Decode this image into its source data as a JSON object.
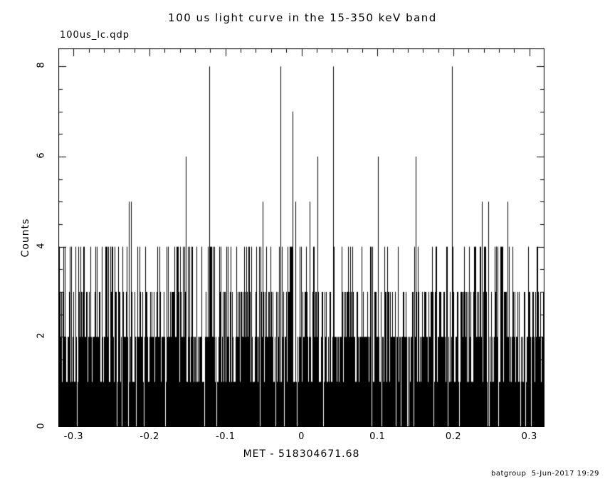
{
  "header": {
    "file_label": "100us_lc.qdp"
  },
  "footer": {
    "credit": "batgroup  5-Jun-2017 19:29"
  },
  "chart_data": {
    "type": "bar",
    "title": "100 us light curve in the 15-350 keV band",
    "xlabel": "MET - 518304671.68",
    "ylabel": "Counts",
    "xlim": [
      -0.32,
      0.32
    ],
    "ylim": [
      0,
      8.4
    ],
    "x_tick_values": [
      -0.3,
      -0.2,
      -0.1,
      0,
      0.1,
      0.2,
      0.3
    ],
    "x_tick_labels": [
      "-0.3",
      "-0.2",
      "-0.1",
      "0",
      "0.1",
      "0.2",
      "0.3"
    ],
    "x_minor_interval": 0.02,
    "y_tick_values": [
      0,
      2,
      4,
      6,
      8
    ],
    "y_tick_labels": [
      "0",
      "2",
      "4",
      "6",
      "8"
    ],
    "y_minor_interval": 0.5,
    "bin_width_s": 0.0001,
    "grid": false,
    "legend": "none",
    "style": "vertical-line histogram, black on white",
    "background_counts": {
      "distribution": "poisson",
      "mean": 1.7,
      "cap": 4,
      "render_bins": 1300,
      "seed": 20170605
    },
    "spikes": [
      {
        "x": -0.227,
        "y": 5
      },
      {
        "x": -0.224,
        "y": 5
      },
      {
        "x": -0.152,
        "y": 6
      },
      {
        "x": -0.121,
        "y": 8
      },
      {
        "x": -0.051,
        "y": 5
      },
      {
        "x": -0.028,
        "y": 8
      },
      {
        "x": -0.012,
        "y": 7
      },
      {
        "x": -0.008,
        "y": 5
      },
      {
        "x": 0.011,
        "y": 5
      },
      {
        "x": 0.021,
        "y": 6
      },
      {
        "x": 0.042,
        "y": 8
      },
      {
        "x": 0.101,
        "y": 6
      },
      {
        "x": 0.15,
        "y": 6
      },
      {
        "x": 0.198,
        "y": 8
      },
      {
        "x": 0.238,
        "y": 5
      },
      {
        "x": 0.246,
        "y": 5
      },
      {
        "x": 0.271,
        "y": 5
      }
    ],
    "colors": {
      "foreground": "#000000",
      "background": "#ffffff"
    }
  }
}
